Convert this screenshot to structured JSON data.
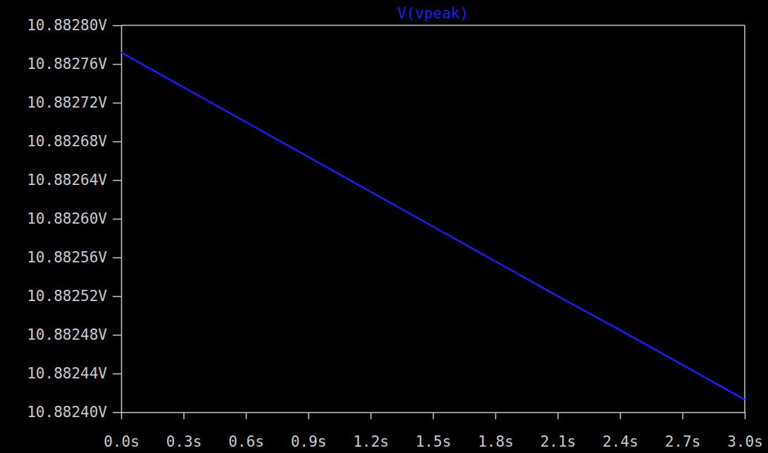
{
  "chart_data": {
    "type": "line",
    "title": "V(vpeak)",
    "color": "#1a1aff",
    "grid": false,
    "x": [
      0.0,
      0.3,
      0.6,
      0.9,
      1.2,
      1.5,
      1.8,
      2.1,
      2.4,
      2.7,
      3.0
    ],
    "values": [
      10.882772,
      10.882736,
      10.8827,
      10.882664,
      10.882628,
      10.882592,
      10.882556,
      10.88252,
      10.882485,
      10.882449,
      10.882413
    ],
    "xlim": [
      0,
      3.0
    ],
    "xticks": [
      {
        "value": 0,
        "label": "0.0s"
      },
      {
        "value": 0.3,
        "label": "0.3s"
      },
      {
        "value": 0.6,
        "label": "0.6s"
      },
      {
        "value": 0.9,
        "label": "0.9s"
      },
      {
        "value": 1.2,
        "label": "1.2s"
      },
      {
        "value": 1.5,
        "label": "1.5s"
      },
      {
        "value": 1.8,
        "label": "1.8s"
      },
      {
        "value": 2.1,
        "label": "2.1s"
      },
      {
        "value": 2.4,
        "label": "2.4s"
      },
      {
        "value": 2.7,
        "label": "2.7s"
      },
      {
        "value": 3.0,
        "label": "3.0s"
      }
    ],
    "ylim": [
      10.8824,
      10.8828
    ],
    "yticks": [
      {
        "value": 10.8824,
        "label": "10.88240V"
      },
      {
        "value": 10.88244,
        "label": "10.88244V"
      },
      {
        "value": 10.88248,
        "label": "10.88248V"
      },
      {
        "value": 10.88252,
        "label": "10.88252V"
      },
      {
        "value": 10.88256,
        "label": "10.88256V"
      },
      {
        "value": 10.8826,
        "label": "10.88260V"
      },
      {
        "value": 10.88264,
        "label": "10.88264V"
      },
      {
        "value": 10.88268,
        "label": "10.88268V"
      },
      {
        "value": 10.88272,
        "label": "10.88272V"
      },
      {
        "value": 10.88276,
        "label": "10.88276V"
      },
      {
        "value": 10.8828,
        "label": "10.88280V"
      }
    ]
  }
}
